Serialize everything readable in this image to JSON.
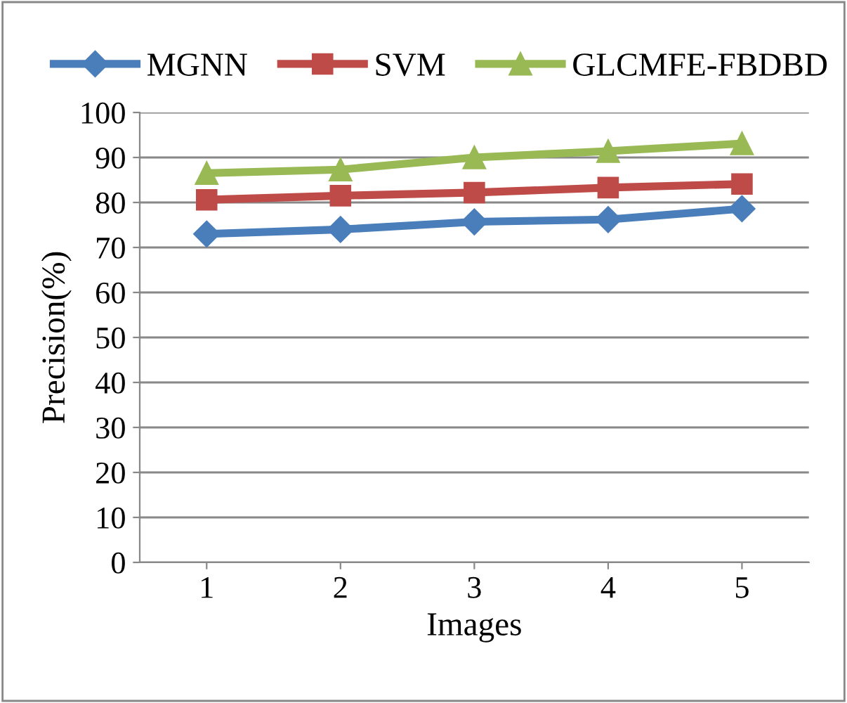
{
  "chart_data": {
    "type": "line",
    "xlabel": "Images",
    "ylabel": "Precision(%)",
    "categories": [
      "1",
      "2",
      "3",
      "4",
      "5"
    ],
    "series": [
      {
        "name": "MGNN",
        "color": "#4a7ebb",
        "marker": "diamond",
        "values": [
          73,
          74,
          75.7,
          76.2,
          78.6
        ]
      },
      {
        "name": "SVM",
        "color": "#be4b48",
        "marker": "square",
        "values": [
          80.6,
          81.5,
          82.2,
          83.3,
          84.1
        ]
      },
      {
        "name": "GLCMFE-FBDBD",
        "color": "#98b954",
        "marker": "triangle",
        "values": [
          86.5,
          87.3,
          90,
          91.4,
          93.1
        ]
      }
    ],
    "ylim": [
      0,
      100
    ],
    "yticks": [
      0,
      10,
      20,
      30,
      40,
      50,
      60,
      70,
      80,
      90,
      100
    ],
    "grid": "y",
    "legend": "top",
    "line_style": "solid"
  }
}
